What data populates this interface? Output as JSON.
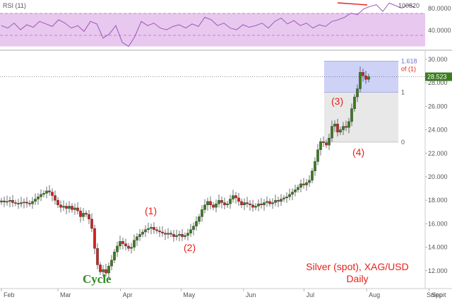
{
  "chart_data": [
    {
      "type": "line",
      "panel": "indicator",
      "title": "RSI (11)",
      "value_label": "100820",
      "y_ticks": [
        "80.0000",
        "40.0000"
      ],
      "ylim": [
        28,
        84
      ],
      "overbought": 70,
      "oversold": 30,
      "band_color": "#e8c8ef",
      "line_color": "#9b59b6",
      "x": [
        0,
        3,
        6,
        9,
        12,
        15,
        18,
        21,
        24,
        27,
        30,
        33,
        36,
        39,
        42,
        45,
        48,
        51,
        54,
        57,
        60,
        63,
        66,
        69,
        72,
        75,
        78,
        81,
        84,
        87,
        90,
        93,
        96,
        99,
        102,
        105,
        108,
        111,
        114,
        117,
        120,
        123,
        126,
        129,
        132,
        135,
        138,
        141,
        144,
        147,
        150,
        153,
        156,
        159,
        162,
        165,
        168,
        171,
        174,
        177,
        180,
        183,
        186,
        189,
        192,
        195
      ],
      "values": [
        55,
        52,
        58,
        50,
        56,
        53,
        60,
        57,
        54,
        62,
        58,
        52,
        55,
        48,
        60,
        57,
        40,
        45,
        55,
        35,
        30,
        42,
        60,
        55,
        58,
        52,
        50,
        54,
        56,
        52,
        57,
        54,
        65,
        62,
        55,
        58,
        52,
        50,
        56,
        53,
        55,
        58,
        52,
        60,
        64,
        57,
        61,
        55,
        58,
        52,
        56,
        54,
        60,
        62,
        65,
        70,
        68,
        75,
        78,
        80,
        72,
        82,
        79,
        76,
        80,
        77
      ],
      "trendline_color": "#e8201a"
    },
    {
      "type": "candlestick",
      "panel": "price",
      "annotations": {
        "title_line1": "Silver (spot), XAG/USD",
        "title_line2": "Daily",
        "cycle_label": "Cycle",
        "waves": [
          "(1)",
          "(2)",
          "(3)",
          "(4)"
        ],
        "fib_label1": "1.618",
        "fib_label2": "of (1)",
        "fib_one": "1",
        "fib_zero": "0"
      },
      "current_price": "28.523",
      "y_ticks": [
        "30.000",
        "28.000",
        "26.000",
        "24.000",
        "22.000",
        "20.000",
        "18.000",
        "16.000",
        "14.000",
        "12.000"
      ],
      "y_tick_values": [
        30,
        28,
        26,
        24,
        22,
        20,
        18,
        16,
        14,
        12
      ],
      "x_ticks": [
        "Feb",
        "Mar",
        "Apr",
        "May",
        "Jun",
        "Jul",
        "Aug",
        "Sep"
      ],
      "x_tick_days": [
        0,
        28,
        59,
        89,
        120,
        150,
        181,
        212
      ],
      "snippit": "Snippit",
      "ylim": [
        10.6,
        30.6
      ],
      "up_color": "#3a7d1e",
      "down_color": "#d42020",
      "fib_box_color": "#c9cdf6",
      "fib_lower_box_color": "#e6e6e6",
      "fib_levels": {
        "zero": 22.95,
        "one": 27.2,
        "ext": 29.85
      },
      "closes": [
        17.95,
        17.85,
        17.9,
        18.0,
        17.8,
        17.75,
        17.7,
        17.8,
        17.85,
        17.75,
        17.7,
        17.9,
        18.1,
        18.3,
        18.5,
        18.6,
        18.8,
        18.7,
        18.4,
        18.0,
        17.6,
        17.4,
        17.5,
        17.3,
        17.5,
        17.2,
        17.35,
        17.1,
        16.6,
        16.9,
        16.8,
        16.4,
        15.6,
        13.9,
        12.5,
        11.9,
        12.1,
        11.8,
        12.4,
        12.9,
        13.6,
        14.1,
        14.5,
        14.3,
        14.1,
        13.9,
        14.0,
        14.6,
        14.9,
        15.1,
        15.3,
        15.5,
        15.6,
        15.7,
        15.5,
        15.4,
        15.3,
        15.2,
        15.1,
        15.2,
        15.1,
        14.9,
        15.0,
        15.1,
        14.9,
        15.0,
        15.2,
        15.5,
        15.8,
        16.2,
        16.6,
        17.2,
        17.6,
        17.9,
        17.6,
        17.4,
        17.7,
        18.0,
        17.8,
        17.6,
        17.7,
        18.1,
        18.4,
        18.2,
        17.9,
        17.6,
        17.8,
        17.7,
        17.6,
        17.4,
        17.5,
        17.7,
        17.6,
        17.8,
        17.9,
        17.7,
        17.8,
        18.0,
        17.9,
        18.1,
        18.2,
        18.3,
        18.5,
        18.7,
        18.9,
        19.1,
        19.4,
        19.3,
        19.5,
        19.7,
        20.5,
        21.3,
        22.3,
        23.0,
        22.9,
        22.7,
        23.3,
        24.3,
        24.5,
        23.8,
        24.0,
        24.3,
        24.2,
        24.7,
        25.8,
        26.8,
        27.5,
        28.9,
        28.6,
        28.3,
        28.523
      ]
    }
  ]
}
